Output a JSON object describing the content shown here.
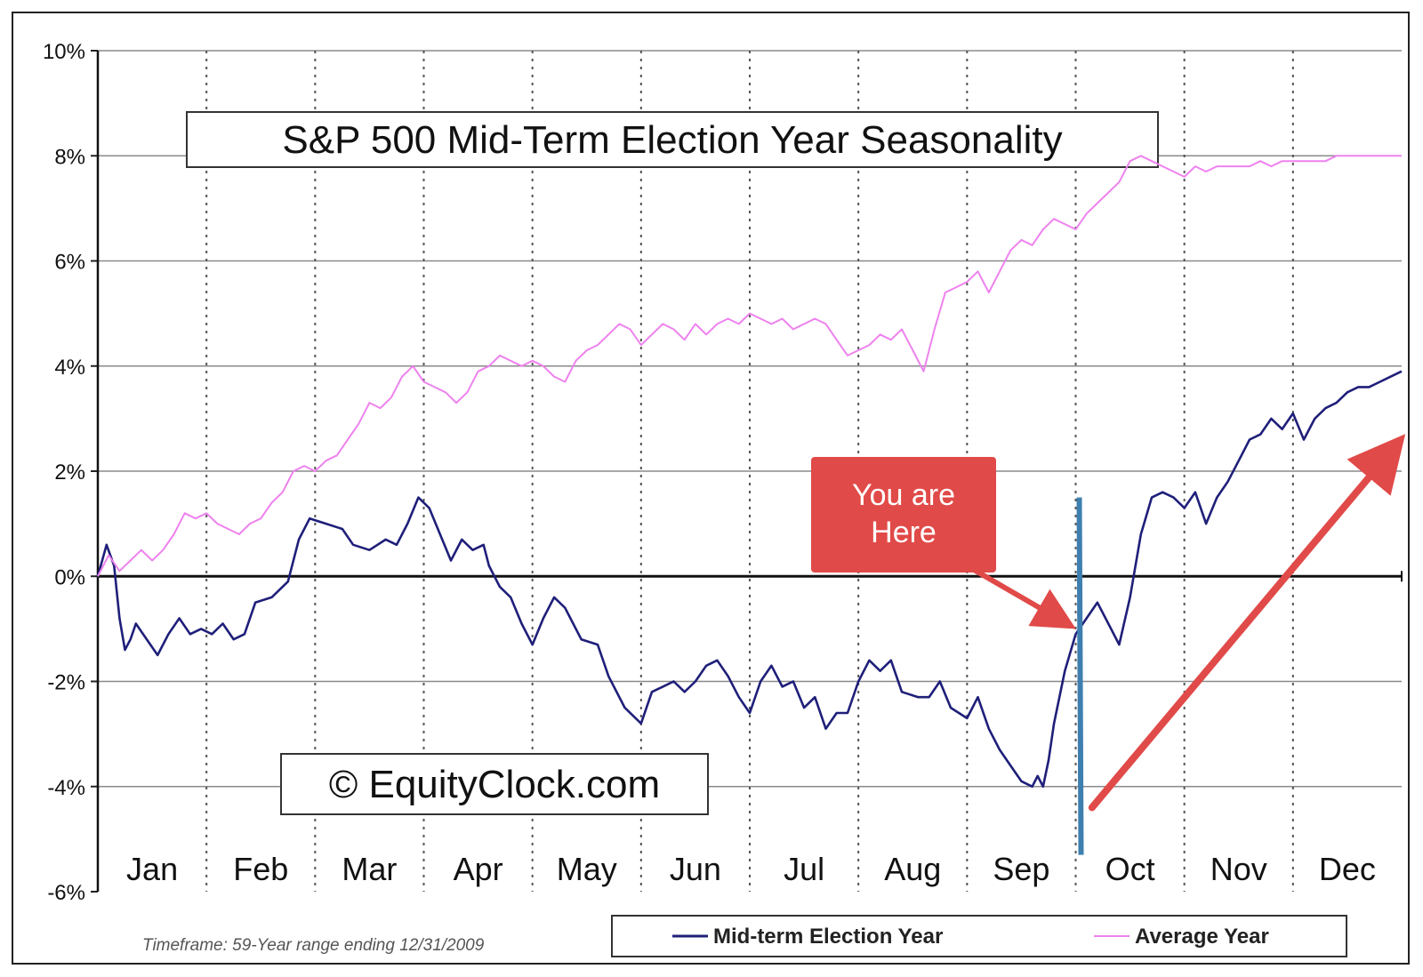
{
  "chart_data": {
    "type": "line",
    "title": "S&P 500 Mid-Term Election Year Seasonality",
    "watermark": "© EquityClock.com",
    "footnote": "Timeframe: 59-Year range ending 12/31/2009",
    "x_unit": "month",
    "xlim": [
      0,
      12
    ],
    "ylim": [
      -6,
      10
    ],
    "y_ticks": [
      10,
      8,
      6,
      4,
      2,
      0,
      -2,
      -4,
      -6
    ],
    "y_tick_labels": [
      "10%",
      "8%",
      "6%",
      "4%",
      "2%",
      "0%",
      "-2%",
      "-4%",
      "-6%"
    ],
    "categories": [
      "Jan",
      "Feb",
      "Mar",
      "Apr",
      "May",
      "Jun",
      "Jul",
      "Aug",
      "Sep",
      "Oct",
      "Nov",
      "Dec"
    ],
    "grid": {
      "horizontal": "solid",
      "vertical": "dotted"
    },
    "legend_position": "bottom-right",
    "series": [
      {
        "name": "Mid-term Election Year",
        "color": "#1f1f7a",
        "x": [
          0,
          0.08,
          0.15,
          0.2,
          0.25,
          0.3,
          0.35,
          0.45,
          0.55,
          0.65,
          0.75,
          0.85,
          0.95,
          1.05,
          1.15,
          1.25,
          1.35,
          1.45,
          1.6,
          1.75,
          1.85,
          1.95,
          2.1,
          2.25,
          2.35,
          2.5,
          2.65,
          2.75,
          2.85,
          2.95,
          3.05,
          3.15,
          3.25,
          3.35,
          3.45,
          3.55,
          3.6,
          3.7,
          3.8,
          3.9,
          4.0,
          4.1,
          4.2,
          4.3,
          4.45,
          4.6,
          4.7,
          4.85,
          5.0,
          5.1,
          5.2,
          5.3,
          5.4,
          5.5,
          5.6,
          5.7,
          5.8,
          5.9,
          6.0,
          6.1,
          6.2,
          6.3,
          6.4,
          6.5,
          6.6,
          6.7,
          6.8,
          6.9,
          7.0,
          7.1,
          7.2,
          7.3,
          7.4,
          7.55,
          7.65,
          7.75,
          7.85,
          8.0,
          8.1,
          8.2,
          8.3,
          8.4,
          8.5,
          8.6,
          8.65,
          8.7,
          8.75,
          8.8,
          8.9,
          9.0,
          9.1,
          9.2,
          9.3,
          9.4,
          9.5,
          9.6,
          9.7,
          9.8,
          9.9,
          10.0,
          10.1,
          10.2,
          10.3,
          10.4,
          10.5,
          10.6,
          10.7,
          10.8,
          10.9,
          11.0,
          11.1,
          11.2,
          11.3,
          11.4,
          11.5,
          11.6,
          11.7,
          11.8,
          11.9,
          12.0
        ],
        "y": [
          0,
          0.6,
          0.2,
          -0.8,
          -1.4,
          -1.2,
          -0.9,
          -1.2,
          -1.5,
          -1.1,
          -0.8,
          -1.1,
          -1.0,
          -1.1,
          -0.9,
          -1.2,
          -1.1,
          -0.5,
          -0.4,
          -0.1,
          0.7,
          1.1,
          1.0,
          0.9,
          0.6,
          0.5,
          0.7,
          0.6,
          1.0,
          1.5,
          1.3,
          0.8,
          0.3,
          0.7,
          0.5,
          0.6,
          0.2,
          -0.2,
          -0.4,
          -0.9,
          -1.3,
          -0.8,
          -0.4,
          -0.6,
          -1.2,
          -1.3,
          -1.9,
          -2.5,
          -2.8,
          -2.2,
          -2.1,
          -2.0,
          -2.2,
          -2.0,
          -1.7,
          -1.6,
          -1.9,
          -2.3,
          -2.6,
          -2.0,
          -1.7,
          -2.1,
          -2.0,
          -2.5,
          -2.3,
          -2.9,
          -2.6,
          -2.6,
          -2.0,
          -1.6,
          -1.8,
          -1.6,
          -2.2,
          -2.3,
          -2.3,
          -2.0,
          -2.5,
          -2.7,
          -2.3,
          -2.9,
          -3.3,
          -3.6,
          -3.9,
          -4.0,
          -3.8,
          -4.0,
          -3.5,
          -2.8,
          -1.8,
          -1.1,
          -0.8,
          -0.5,
          -0.9,
          -1.3,
          -0.4,
          0.8,
          1.5,
          1.6,
          1.5,
          1.3,
          1.6,
          1.0,
          1.5,
          1.8,
          2.2,
          2.6,
          2.7,
          3.0,
          2.8,
          3.1,
          2.6,
          3.0,
          3.2,
          3.3,
          3.5,
          3.6,
          3.6,
          3.7,
          3.8,
          3.9
        ]
      },
      {
        "name": "Average Year",
        "color": "#ee82ee",
        "x": [
          0,
          0.1,
          0.2,
          0.3,
          0.4,
          0.5,
          0.6,
          0.7,
          0.8,
          0.9,
          1.0,
          1.1,
          1.2,
          1.3,
          1.4,
          1.5,
          1.6,
          1.7,
          1.8,
          1.9,
          2.0,
          2.1,
          2.2,
          2.3,
          2.4,
          2.5,
          2.6,
          2.7,
          2.8,
          2.9,
          3.0,
          3.1,
          3.2,
          3.3,
          3.4,
          3.5,
          3.6,
          3.7,
          3.8,
          3.9,
          4.0,
          4.1,
          4.2,
          4.3,
          4.4,
          4.5,
          4.6,
          4.7,
          4.8,
          4.9,
          5.0,
          5.1,
          5.2,
          5.3,
          5.4,
          5.5,
          5.6,
          5.7,
          5.8,
          5.9,
          6.0,
          6.1,
          6.2,
          6.3,
          6.4,
          6.5,
          6.6,
          6.7,
          6.8,
          6.9,
          7.0,
          7.1,
          7.2,
          7.3,
          7.4,
          7.5,
          7.6,
          7.7,
          7.8,
          7.9,
          8.0,
          8.1,
          8.2,
          8.3,
          8.4,
          8.5,
          8.6,
          8.7,
          8.8,
          8.9,
          9.0,
          9.1,
          9.2,
          9.3,
          9.4,
          9.5,
          9.6,
          9.7,
          9.8,
          9.9,
          10.0,
          10.1,
          10.2,
          10.3,
          10.4,
          10.5,
          10.6,
          10.7,
          10.8,
          10.9,
          11.0,
          11.1,
          11.2,
          11.3,
          11.4,
          11.5,
          11.6,
          11.7,
          11.8,
          11.9,
          12.0
        ],
        "y": [
          0,
          0.4,
          0.1,
          0.3,
          0.5,
          0.3,
          0.5,
          0.8,
          1.2,
          1.1,
          1.2,
          1.0,
          0.9,
          0.8,
          1.0,
          1.1,
          1.4,
          1.6,
          2.0,
          2.1,
          2.0,
          2.2,
          2.3,
          2.6,
          2.9,
          3.3,
          3.2,
          3.4,
          3.8,
          4.0,
          3.7,
          3.6,
          3.5,
          3.3,
          3.5,
          3.9,
          4.0,
          4.2,
          4.1,
          4.0,
          4.1,
          4.0,
          3.8,
          3.7,
          4.1,
          4.3,
          4.4,
          4.6,
          4.8,
          4.7,
          4.4,
          4.6,
          4.8,
          4.7,
          4.5,
          4.8,
          4.6,
          4.8,
          4.9,
          4.8,
          5.0,
          4.9,
          4.8,
          4.9,
          4.7,
          4.8,
          4.9,
          4.8,
          4.5,
          4.2,
          4.3,
          4.4,
          4.6,
          4.5,
          4.7,
          4.3,
          3.9,
          4.7,
          5.4,
          5.5,
          5.6,
          5.8,
          5.4,
          5.8,
          6.2,
          6.4,
          6.3,
          6.6,
          6.8,
          6.7,
          6.6,
          6.9,
          7.1,
          7.3,
          7.5,
          7.9,
          8.0,
          7.9,
          7.8,
          7.7,
          7.6,
          7.8,
          7.7,
          7.8,
          7.8,
          7.8,
          7.8,
          7.9,
          7.8,
          7.9,
          7.9,
          7.9,
          7.9,
          7.9,
          8.0,
          8.0,
          8.0,
          8.0,
          8.0,
          8.0,
          8.0
        ]
      }
    ],
    "annotations": [
      {
        "type": "callout",
        "text_lines": [
          "You are",
          "Here"
        ],
        "box_color": "#e04a48",
        "text_color": "#ffffff",
        "points_to": {
          "x": 9.0,
          "y": -0.9
        }
      },
      {
        "type": "marker-line",
        "color": "#3e7fb0",
        "x": 9.0,
        "y_from": 1.5,
        "y_to": -5.3
      },
      {
        "type": "trend-arrow",
        "color": "#e04a48",
        "from": {
          "x": 9.15,
          "y": -4.4
        },
        "to": {
          "x": 11.95,
          "y": 2.5
        }
      }
    ]
  }
}
